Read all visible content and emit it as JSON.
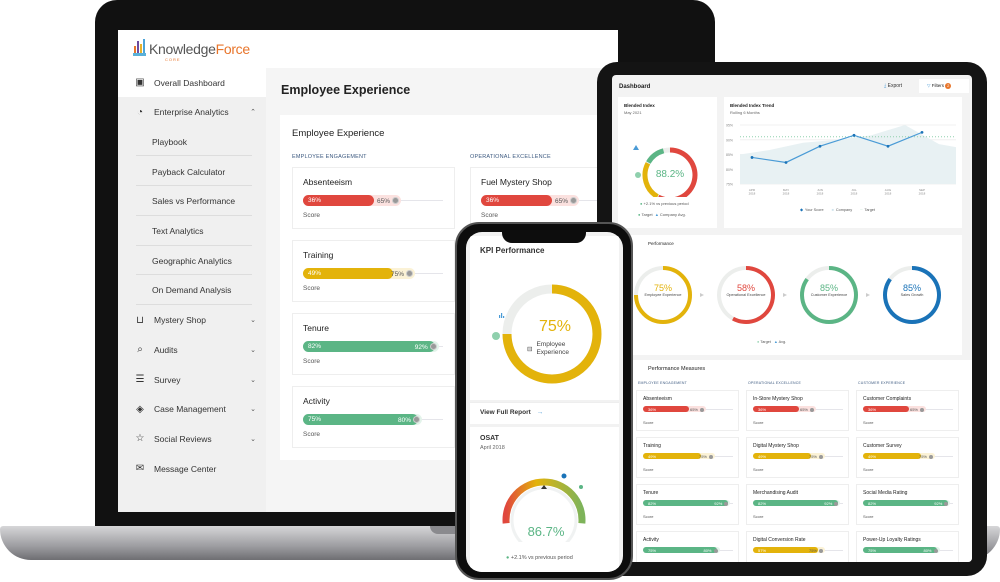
{
  "colors": {
    "red": "#e0473e",
    "red_tint": "#fbe1df",
    "yellow": "#e3b30b",
    "yellow_tint": "#fbf2d6",
    "green": "#5bb585",
    "green_tint": "#e3f3ea",
    "blue": "#1a73b8",
    "line": "#4a9bd6",
    "area": "#e8f1f3",
    "ring_gray": "#eceeec"
  },
  "laptop": {
    "logo": {
      "part1": "Knowledge",
      "part2": "Force",
      "sub": "CORE"
    },
    "sidebar": {
      "items": [
        {
          "label": "Overall Dashboard",
          "icon": "dashboard-icon",
          "glyph": "▣",
          "active": true
        },
        {
          "label": "Enterprise Analytics",
          "icon": "pie-chart-icon",
          "glyph": "◔",
          "chevron": "⌃"
        },
        {
          "label": "Playbook",
          "sub": true
        },
        {
          "label": "Payback Calculator",
          "sub": true
        },
        {
          "label": "Sales vs Performance",
          "sub": true
        },
        {
          "label": "Text Analytics",
          "sub": true
        },
        {
          "label": "Geographic Analytics",
          "sub": true
        },
        {
          "label": "On Demand Analysis",
          "sub": true
        },
        {
          "label": "Mystery Shop",
          "icon": "cart-icon",
          "glyph": "⊔",
          "chevron": "⌄"
        },
        {
          "label": "Audits",
          "icon": "search-icon",
          "glyph": "⌕",
          "chevron": "⌄"
        },
        {
          "label": "Survey",
          "icon": "document-icon",
          "glyph": "☰",
          "chevron": "⌄"
        },
        {
          "label": "Case Management",
          "icon": "layers-icon",
          "glyph": "◈",
          "chevron": "⌄"
        },
        {
          "label": "Social Reviews",
          "icon": "star-icon",
          "glyph": "☆",
          "chevron": "⌄"
        },
        {
          "label": "Message Center",
          "icon": "mail-icon",
          "glyph": "✉"
        }
      ]
    },
    "page_title": "Employee Experience",
    "card_title": "Employee Experience",
    "sections": [
      {
        "label": "EMPLOYEE ENGAGEMENT",
        "metrics": [
          {
            "name": "Absenteeism",
            "score": "36%",
            "target": "65%",
            "s": 36,
            "t": 65,
            "status": "red",
            "score_label": "Score"
          },
          {
            "name": "Training",
            "score": "49%",
            "target": "75%",
            "s": 49,
            "t": 75,
            "status": "yellow",
            "score_label": "Score"
          },
          {
            "name": "Tenure",
            "score": "82%",
            "target": "92%",
            "s": 82,
            "t": 92,
            "status": "green",
            "score_label": "Score"
          },
          {
            "name": "Activity",
            "score": "75%",
            "target": "80%",
            "s": 75,
            "t": 80,
            "status": "green",
            "score_label": "Score"
          }
        ]
      },
      {
        "label": "OPERATIONAL EXCELLENCE",
        "metrics": [
          {
            "name": "Fuel Mystery Shop",
            "score": "36%",
            "target": "65%",
            "s": 36,
            "t": 65,
            "status": "red",
            "score_label": "Score"
          }
        ]
      }
    ]
  },
  "tablet": {
    "header": {
      "title": "Dashboard",
      "export": "Export",
      "filters": "Filters",
      "filter_count": "2"
    },
    "blended": {
      "title": "Blended Index",
      "subtitle": "May 2021",
      "value": "88.2%",
      "change": "+2.1% vs previous period",
      "legend_target": "Target",
      "legend_avg": "Company Avg."
    },
    "trend": {
      "title": "Blended Index Trend",
      "subtitle": "Rolling 6 Months",
      "legend": [
        "Your Score",
        "Company",
        "Target"
      ]
    },
    "performance": {
      "title": "Performance",
      "legend_target": "Target",
      "legend_avg": "Avg.",
      "rings": [
        {
          "value": "75%",
          "v": 75,
          "label": "Employee Experience",
          "color": "yellow",
          "icon": "briefcase-icon"
        },
        {
          "value": "58%",
          "v": 58,
          "label": "Operational Excellence",
          "color": "red",
          "icon": "clipboard-icon"
        },
        {
          "value": "85%",
          "v": 85,
          "label": "Customer Experience",
          "color": "green",
          "icon": "person-icon"
        },
        {
          "value": "85%",
          "v": 85,
          "label": "Sales Growth",
          "color": "blue",
          "icon": "chart-icon"
        }
      ]
    },
    "measures": {
      "title": "Performance Measures",
      "columns": [
        {
          "label": "EMPLOYEE ENGAGEMENT",
          "metrics": [
            {
              "name": "Absenteeism",
              "score": "36%",
              "target": "65%",
              "s": 36,
              "t": 65,
              "status": "red",
              "score_label": "Score"
            },
            {
              "name": "Training",
              "score": "49%",
              "target": "75%",
              "s": 49,
              "t": 75,
              "status": "yellow",
              "score_label": "Score"
            },
            {
              "name": "Tenure",
              "score": "82%",
              "target": "92%",
              "s": 82,
              "t": 92,
              "status": "green",
              "score_label": "Score"
            },
            {
              "name": "Activity",
              "score": "75%",
              "target": "80%",
              "s": 75,
              "t": 80,
              "status": "green",
              "score_label": "Score"
            }
          ]
        },
        {
          "label": "OPERATIONAL EXCELLENCE",
          "metrics": [
            {
              "name": "In-Store Mystery Shop",
              "score": "36%",
              "target": "65%",
              "s": 36,
              "t": 65,
              "status": "red",
              "score_label": "Score"
            },
            {
              "name": "Digital Mystery Shop",
              "score": "49%",
              "target": "75%",
              "s": 49,
              "t": 75,
              "status": "yellow",
              "score_label": "Score"
            },
            {
              "name": "Merchandising Audit",
              "score": "82%",
              "target": "92%",
              "s": 82,
              "t": 92,
              "status": "green",
              "score_label": "Score"
            },
            {
              "name": "Digital Conversion Rate",
              "score": "57%",
              "target": "75%",
              "s": 57,
              "t": 75,
              "status": "yellow",
              "score_label": "Score"
            }
          ]
        },
        {
          "label": "CUSTOMER EXPERIENCE",
          "metrics": [
            {
              "name": "Customer Complaints",
              "score": "36%",
              "target": "65%",
              "s": 36,
              "t": 65,
              "status": "red",
              "score_label": "Score"
            },
            {
              "name": "Customer Survey",
              "score": "49%",
              "target": "75%",
              "s": 49,
              "t": 75,
              "status": "yellow",
              "score_label": "Score"
            },
            {
              "name": "Social Media Rating",
              "score": "82%",
              "target": "92%",
              "s": 82,
              "t": 92,
              "status": "green",
              "score_label": "Score"
            },
            {
              "name": "Power-Up Loyalty Ratings",
              "score": "75%",
              "target": "80%",
              "s": 75,
              "t": 80,
              "status": "green",
              "score_label": "Score"
            }
          ]
        }
      ]
    }
  },
  "phone": {
    "kpi_title": "KPI Performance",
    "kpi_value": "75%",
    "kpi_v": 75,
    "kpi_label": "Employee Experience",
    "view_report": "View Full Report",
    "osat_title": "OSAT",
    "osat_date": "April 2018",
    "osat_value": "86.7%",
    "osat_v": 86.7,
    "osat_change": "+2.1% vs previous period"
  },
  "chart_data": [
    {
      "type": "line",
      "title": "Blended Index Trend",
      "subtitle": "Rolling 6 Months",
      "categories": [
        "APR 2018",
        "MAY 2018",
        "JUN 2018",
        "JUL 2018",
        "AUG 2018",
        "SEP 2018"
      ],
      "yticks": [
        "95%",
        "90%",
        "85%",
        "80%",
        "75%"
      ],
      "ylim": [
        75,
        95
      ],
      "series": [
        {
          "name": "Your Score",
          "type": "line",
          "values": [
            84,
            82.3,
            87.8,
            91.5,
            87.8,
            92.5
          ]
        },
        {
          "name": "Company",
          "type": "area",
          "values": [
            86.5,
            89,
            90,
            91.5,
            95,
            88.5
          ]
        },
        {
          "name": "Target",
          "type": "dotted",
          "values": [
            91,
            91,
            91,
            91,
            91,
            91
          ]
        }
      ],
      "legend": "bottom"
    },
    {
      "type": "pie",
      "title": "Blended Index",
      "center_label": "88.2%",
      "segments_pct": [
        58,
        25,
        13,
        4
      ]
    }
  ]
}
